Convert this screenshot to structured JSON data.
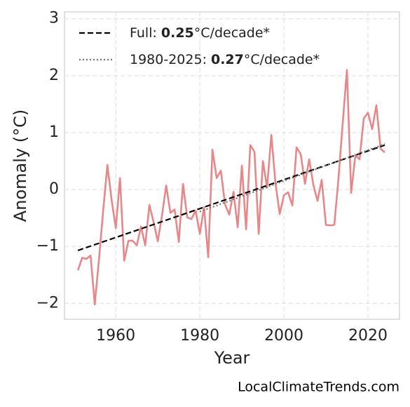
{
  "chart_data": {
    "type": "line",
    "xlabel": "Year",
    "ylabel": "Anomaly (°C)",
    "watermark": "LocalClimateTrends.com",
    "xlim": [
      1947.8,
      2027.5
    ],
    "ylim": [
      -2.28,
      3.12
    ],
    "xticks": [
      1960,
      1980,
      2000,
      2020
    ],
    "yticks": [
      {
        "value": -2,
        "label": "−2"
      },
      {
        "value": -1,
        "label": "−1"
      },
      0,
      1,
      2,
      3
    ],
    "grid": true,
    "legend": "upper left",
    "x": [
      1951,
      1952,
      1953,
      1954,
      1955,
      1956,
      1957,
      1958,
      1959,
      1960,
      1961,
      1962,
      1963,
      1964,
      1965,
      1966,
      1967,
      1968,
      1969,
      1970,
      1971,
      1972,
      1973,
      1974,
      1975,
      1976,
      1977,
      1978,
      1979,
      1980,
      1981,
      1982,
      1983,
      1984,
      1985,
      1986,
      1987,
      1988,
      1989,
      1990,
      1991,
      1992,
      1993,
      1994,
      1995,
      1996,
      1997,
      1998,
      1999,
      2000,
      2001,
      2002,
      2003,
      2004,
      2005,
      2006,
      2007,
      2008,
      2009,
      2010,
      2011,
      2012,
      2013,
      2014,
      2015,
      2016,
      2017,
      2018,
      2019,
      2020,
      2021,
      2022,
      2023,
      2024
    ],
    "series": [
      {
        "color": "#e8878a",
        "style": "solid",
        "values": [
          -1.42,
          -1.2,
          -1.22,
          -1.16,
          -2.02,
          -1.23,
          -0.37,
          0.43,
          -0.18,
          -0.68,
          0.2,
          -1.25,
          -0.9,
          -0.9,
          -0.98,
          -0.65,
          -0.98,
          -0.27,
          -0.57,
          -0.91,
          -0.46,
          0.07,
          -0.41,
          -0.35,
          -0.92,
          0.1,
          -0.49,
          -0.52,
          -0.37,
          -0.78,
          -0.31,
          -1.19,
          0.7,
          0.2,
          0.33,
          -0.26,
          -0.44,
          -0.04,
          -0.66,
          0.42,
          -0.7,
          0.78,
          0.66,
          -0.78,
          0.5,
          0.03,
          0.96,
          0.1,
          -0.43,
          -0.1,
          -0.05,
          -0.28,
          0.74,
          0.62,
          0.1,
          0.53,
          0.08,
          -0.2,
          0.17,
          -0.62,
          -0.63,
          -0.62,
          0.2,
          1.17,
          2.1,
          -0.06,
          0.6,
          0.53,
          1.25,
          1.35,
          1.06,
          1.48,
          0.72,
          0.65
        ]
      },
      {
        "name": "Full:",
        "slope": 0.25,
        "unit": "°C/decade*",
        "color": "#000000",
        "style": "dashed",
        "x": [
          1951,
          2024
        ],
        "values": [
          -1.07,
          0.78
        ]
      },
      {
        "name": "1980-2025:",
        "slope": 0.27,
        "unit": "°C/decade*",
        "color": "#777777",
        "style": "dotted",
        "x": [
          1980,
          2024
        ],
        "values": [
          -0.39,
          0.8
        ]
      }
    ]
  }
}
